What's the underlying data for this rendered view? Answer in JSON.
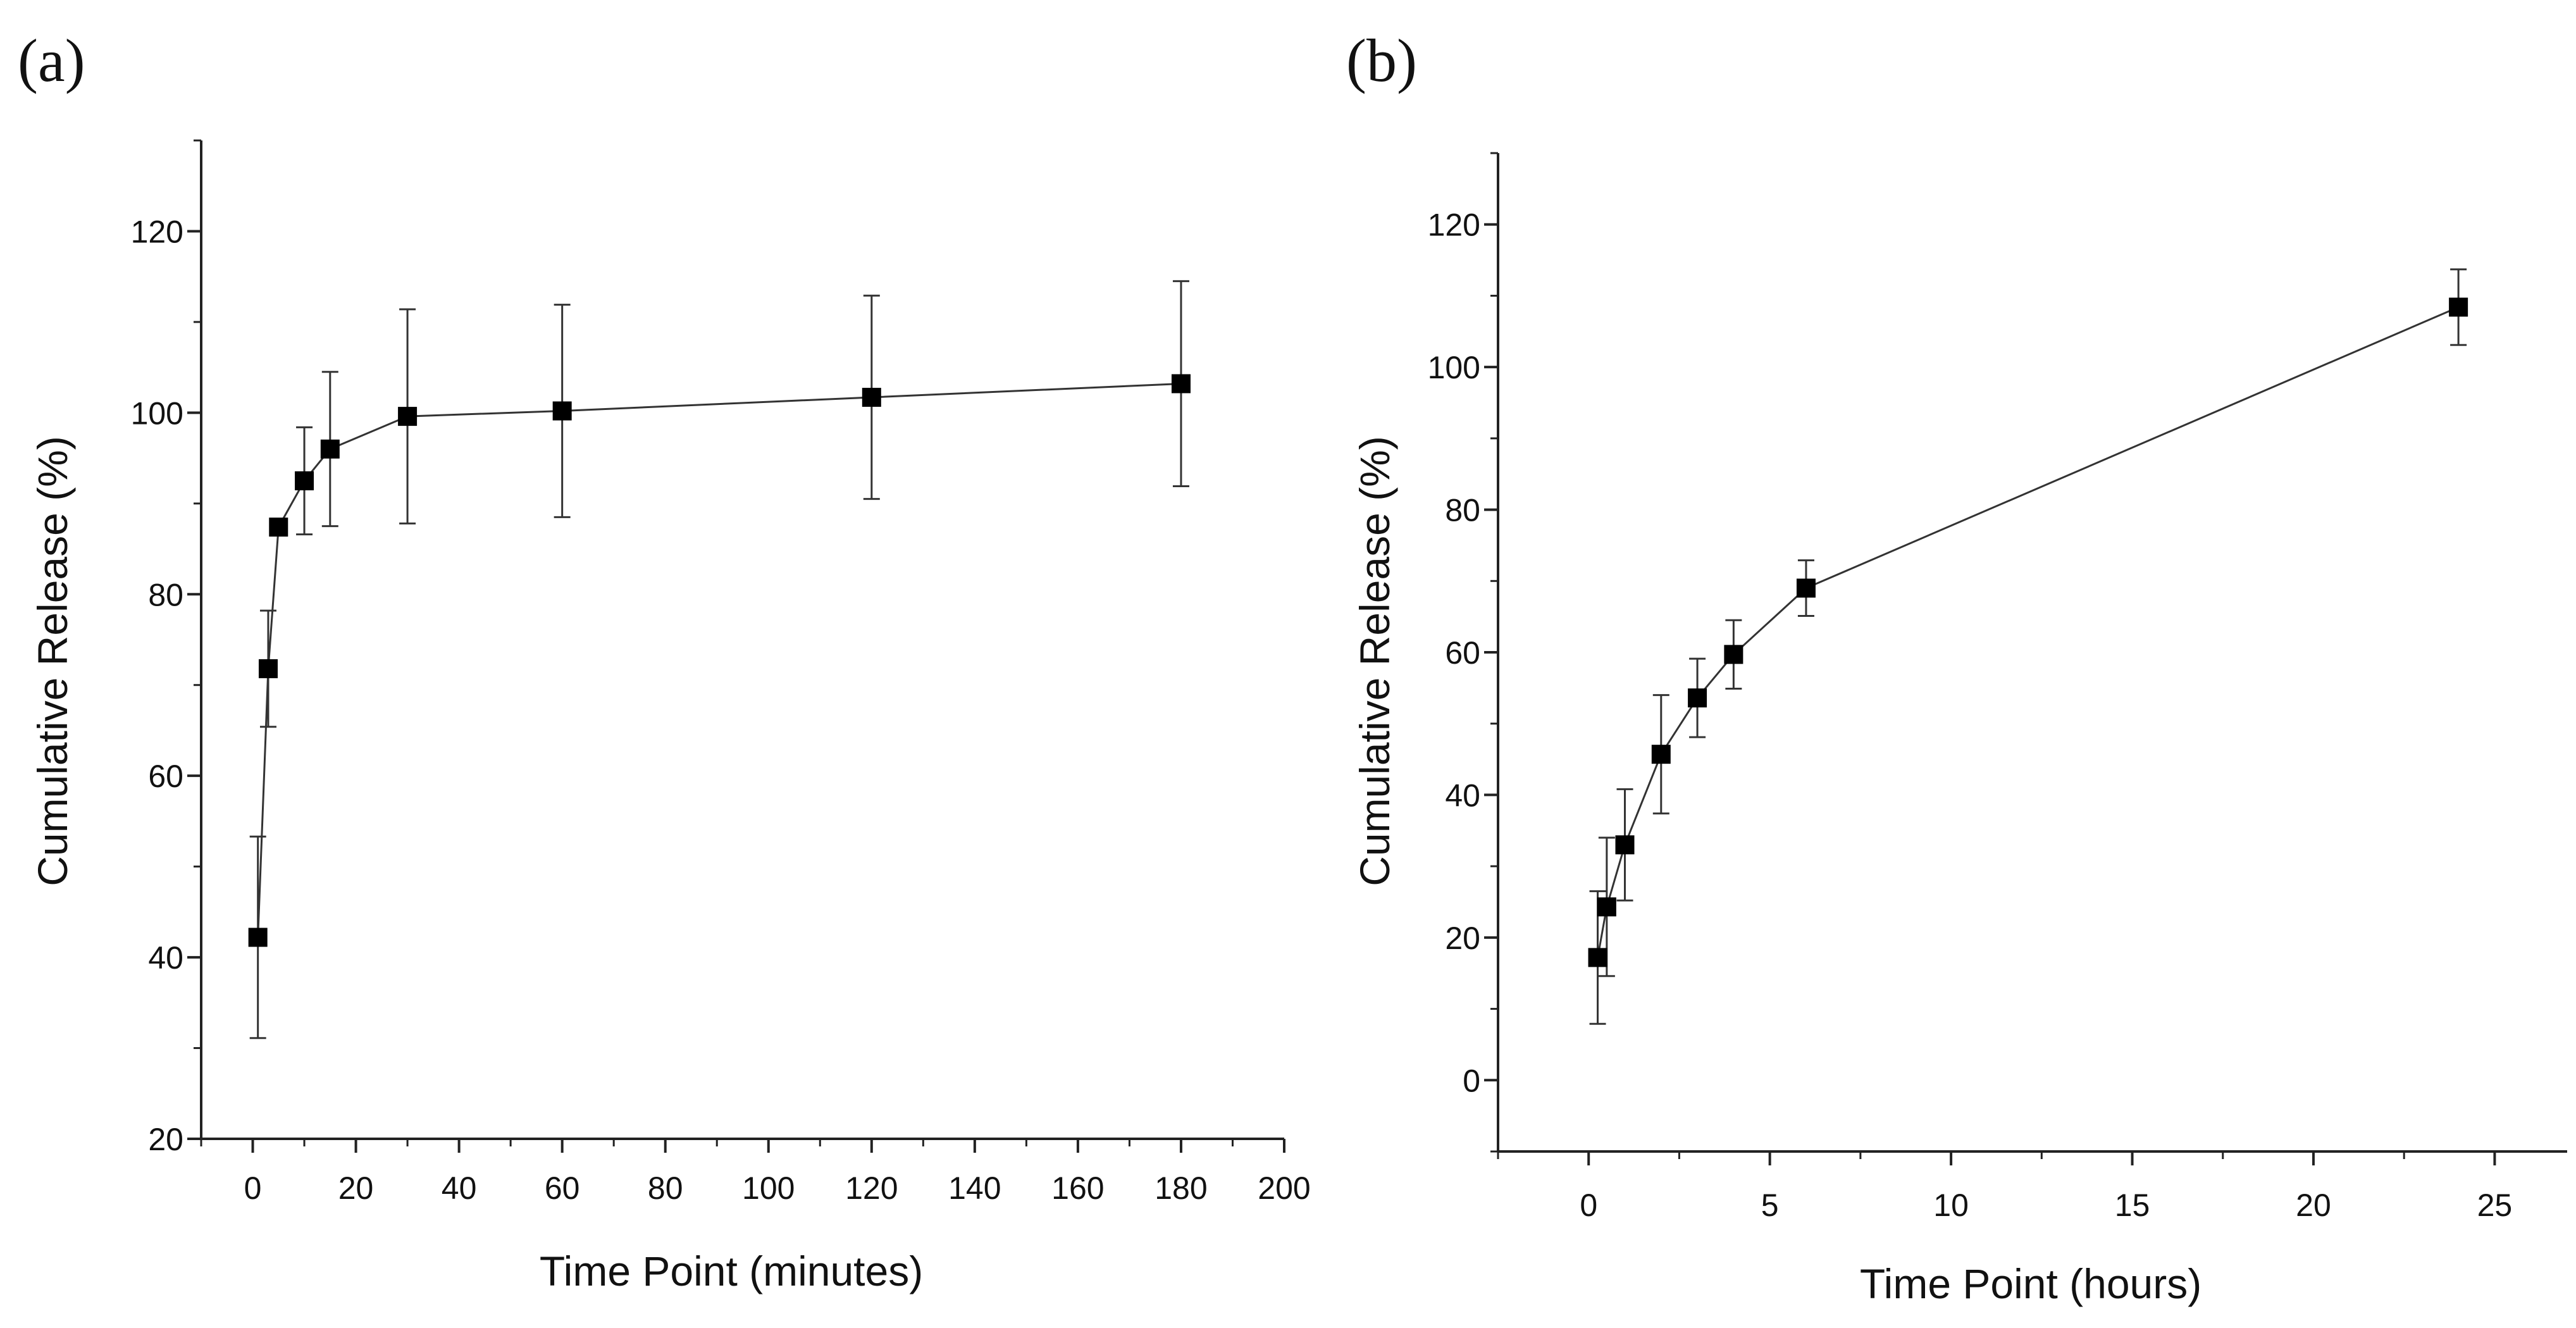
{
  "chart_data": [
    {
      "type": "line",
      "panel_label": "(a)",
      "title": "",
      "xlabel": "Time Point (minutes)",
      "ylabel": "Cumulative Release (%)",
      "xlim": [
        -10,
        200
      ],
      "ylim": [
        20,
        130
      ],
      "xticks": [
        0,
        20,
        40,
        60,
        80,
        100,
        120,
        140,
        160,
        180,
        200
      ],
      "yticks": [
        20,
        40,
        60,
        80,
        100,
        120
      ],
      "grid": false,
      "series": [
        {
          "name": "Cumulative Release",
          "marker": "square",
          "x": [
            1,
            3,
            5,
            10,
            15,
            30,
            60,
            120,
            180
          ],
          "y": [
            42.2,
            71.8,
            87.4,
            92.5,
            96.0,
            99.6,
            100.2,
            101.7,
            103.2
          ],
          "err": [
            11.1,
            6.4,
            0.8,
            5.9,
            8.5,
            11.8,
            11.7,
            11.2,
            11.3
          ]
        }
      ]
    },
    {
      "type": "line",
      "panel_label": "(b)",
      "title": "",
      "xlabel": "Time Point (hours)",
      "ylabel": "Cumulative Release (%)",
      "xlim": [
        -2.5,
        27
      ],
      "ylim": [
        -10,
        130
      ],
      "xticks": [
        0,
        5,
        10,
        15,
        20,
        25
      ],
      "yticks": [
        0,
        20,
        40,
        60,
        80,
        100,
        120
      ],
      "grid": false,
      "series": [
        {
          "name": "Cumulative Release",
          "marker": "square",
          "x": [
            0.25,
            0.5,
            1,
            2,
            3,
            4,
            6,
            24
          ],
          "y": [
            17.2,
            24.3,
            33.0,
            45.7,
            53.6,
            59.7,
            69.0,
            108.4
          ],
          "err": [
            9.3,
            9.7,
            7.8,
            8.3,
            5.5,
            4.8,
            3.9,
            5.3
          ]
        }
      ]
    }
  ]
}
